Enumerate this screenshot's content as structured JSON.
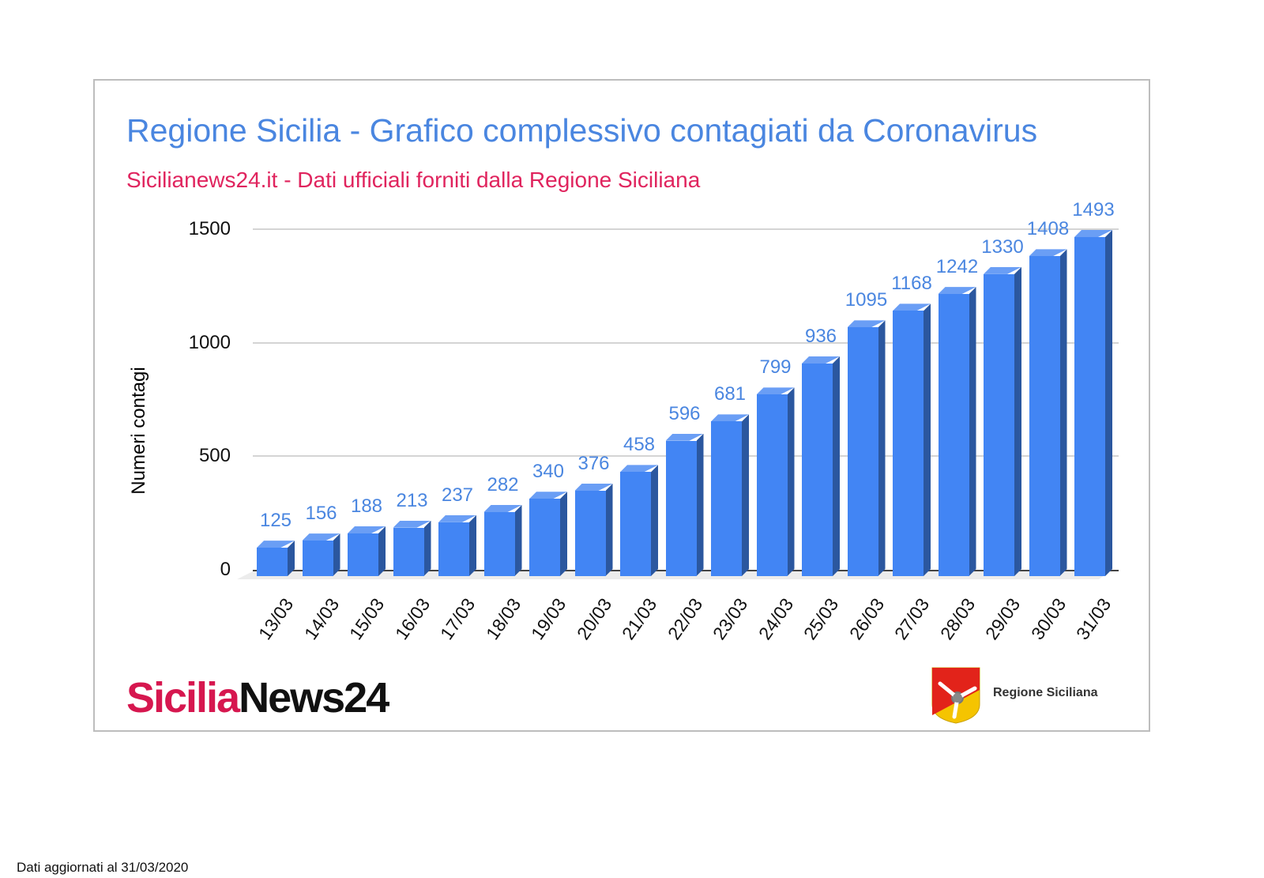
{
  "chart_data": {
    "type": "bar",
    "title": "Regione Sicilia - Grafico complessivo contagiati da Coronavirus",
    "subtitle": "Sicilianews24.it - Dati ufficiali forniti dalla Regione Siciliana",
    "xlabel": "",
    "ylabel": "Numeri contagi",
    "ylim": [
      0,
      1500
    ],
    "yticks": [
      "0",
      "500",
      "1000",
      "1500"
    ],
    "grid": true,
    "legend": null,
    "style": "3d-column",
    "bar_color": "#4285f4",
    "label_color": "#4a86e0",
    "categories": [
      "13/03",
      "14/03",
      "15/03",
      "16/03",
      "17/03",
      "18/03",
      "19/03",
      "20/03",
      "21/03",
      "22/03",
      "23/03",
      "24/03",
      "25/03",
      "26/03",
      "27/03",
      "28/03",
      "29/03",
      "30/03",
      "31/03"
    ],
    "values": [
      125,
      156,
      188,
      213,
      237,
      282,
      340,
      376,
      458,
      596,
      681,
      799,
      936,
      1095,
      1168,
      1242,
      1330,
      1408,
      1493
    ],
    "data_labels": [
      "125",
      "156",
      "188",
      "213",
      "237",
      "282",
      "340",
      "376",
      "458",
      "596",
      "681",
      "799",
      "936",
      "1095",
      "1168",
      "1242",
      "1330",
      "1408",
      "1493"
    ]
  },
  "header": {
    "title": "Regione Sicilia - Grafico complessivo contagiati da Coronavirus",
    "subtitle": "Sicilianews24.it - Dati ufficiali forniti dalla Regione Siciliana"
  },
  "logos": {
    "sicilianews_part1": "Sicilia",
    "sicilianews_part2": "News24",
    "regione_text": "Regione Siciliana"
  },
  "colors": {
    "title": "#4a86e0",
    "subtitle": "#e0245e",
    "logo_red": "#d6174f"
  },
  "footer": {
    "text": "Dati aggiornati al 31/03/2020"
  }
}
